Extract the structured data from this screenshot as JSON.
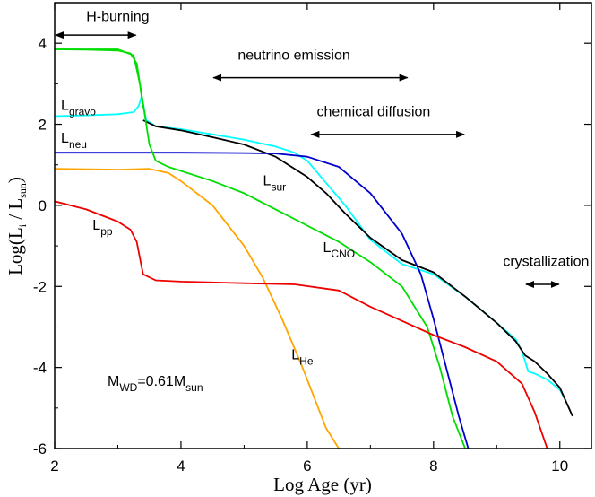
{
  "chart_data": {
    "type": "line",
    "title": "",
    "xlabel": "Log Age (yr)",
    "ylabel_main": "Log(L",
    "ylabel_sub1": "i",
    "ylabel_mid": " / L",
    "ylabel_sub2": "sun",
    "ylabel_end": ")",
    "xlim": [
      2,
      10.5
    ],
    "ylim": [
      -6,
      5
    ],
    "xticks": [
      2,
      4,
      6,
      8,
      10
    ],
    "yticks": [
      -6,
      -4,
      -2,
      0,
      2,
      4
    ],
    "xtick_labels": [
      "2",
      "4",
      "6",
      "8",
      "10"
    ],
    "ytick_labels": [
      "-6",
      "-4",
      "-2",
      "0",
      "2",
      "4"
    ],
    "note": {
      "base": "M",
      "sub1": "WD",
      "mid": "=0.61M",
      "sub2": "sun"
    },
    "annotations": [
      {
        "label": "H-burning",
        "x1": 2.0,
        "x2": 3.3,
        "y": 4.2,
        "tx": 2.5,
        "ty": 4.55
      },
      {
        "label": "neutrino emission",
        "x1": 4.5,
        "x2": 7.6,
        "y": 3.15,
        "tx": 4.9,
        "ty": 3.6
      },
      {
        "label": "chemical diffusion",
        "x1": 6.05,
        "x2": 8.5,
        "y": 1.75,
        "tx": 6.15,
        "ty": 2.2
      },
      {
        "label": "crystallization",
        "x1": 9.45,
        "x2": 10.0,
        "y": -1.95,
        "tx": 9.1,
        "ty": -1.5
      }
    ],
    "series": [
      {
        "name": "L_gravo",
        "label_base": "L",
        "label_sub": "gravo",
        "label_x": 2.1,
        "label_y": 2.35,
        "color": "#00ffff",
        "x": [
          2.0,
          2.5,
          3.0,
          3.25,
          3.33,
          3.38,
          3.45,
          3.6,
          4.0,
          4.5,
          5.0,
          5.5,
          5.8,
          6.0,
          6.3,
          6.6,
          7.0,
          7.5,
          8.0,
          8.5,
          9.0,
          9.3,
          9.4,
          9.5,
          9.6,
          9.8,
          10.0,
          10.05
        ],
        "y": [
          2.2,
          2.22,
          2.25,
          2.3,
          2.45,
          2.7,
          2.1,
          1.95,
          1.88,
          1.75,
          1.62,
          1.45,
          1.3,
          1.1,
          0.55,
          0.0,
          -0.85,
          -1.45,
          -1.7,
          -2.25,
          -2.9,
          -3.3,
          -3.6,
          -4.1,
          -4.15,
          -4.3,
          -4.55,
          -4.7
        ]
      },
      {
        "name": "L_sur",
        "label_base": "L",
        "label_sub": "sur",
        "label_x": 5.3,
        "label_y": 0.5,
        "color": "#000000",
        "x": [
          3.4,
          3.6,
          4.0,
          4.5,
          5.0,
          5.5,
          5.8,
          6.0,
          6.3,
          6.6,
          7.0,
          7.5,
          8.0,
          8.5,
          9.0,
          9.3,
          9.45,
          9.6,
          9.8,
          10.0,
          10.2
        ],
        "y": [
          2.1,
          1.95,
          1.85,
          1.68,
          1.5,
          1.2,
          0.9,
          0.7,
          0.3,
          -0.2,
          -0.8,
          -1.35,
          -1.65,
          -2.25,
          -2.9,
          -3.35,
          -3.7,
          -3.85,
          -4.15,
          -4.5,
          -5.2
        ]
      },
      {
        "name": "L_neu",
        "label_base": "L",
        "label_sub": "neu",
        "label_x": 2.1,
        "label_y": 1.55,
        "color": "#0000cd",
        "x": [
          2.0,
          3.0,
          4.0,
          5.0,
          5.5,
          6.0,
          6.5,
          7.0,
          7.5,
          7.8,
          8.0,
          8.2,
          8.4,
          8.55
        ],
        "y": [
          1.3,
          1.3,
          1.3,
          1.29,
          1.28,
          1.2,
          0.95,
          0.3,
          -0.7,
          -1.7,
          -2.8,
          -4.0,
          -5.2,
          -6.0
        ]
      },
      {
        "name": "L_CNO",
        "label_base": "L",
        "label_sub": "CNO",
        "label_x": 6.25,
        "label_y": -1.15,
        "color": "#00dd00",
        "x": [
          2.0,
          2.5,
          3.0,
          3.2,
          3.3,
          3.4,
          3.5,
          3.6,
          3.8,
          4.0,
          4.5,
          5.0,
          5.5,
          6.0,
          6.5,
          7.0,
          7.5,
          7.9,
          8.1,
          8.3,
          8.5
        ],
        "y": [
          3.85,
          3.84,
          3.82,
          3.75,
          3.5,
          2.5,
          1.5,
          1.1,
          0.95,
          0.85,
          0.6,
          0.3,
          -0.1,
          -0.5,
          -0.9,
          -1.4,
          -2.0,
          -3.0,
          -4.0,
          -5.2,
          -6.0
        ]
      },
      {
        "name": "L_H-burning",
        "color": "#00dd00",
        "x": [
          2.0,
          3.0,
          3.25,
          3.35,
          3.4
        ],
        "y": [
          3.85,
          3.85,
          3.7,
          3.0,
          2.4
        ]
      },
      {
        "name": "L_He",
        "label_base": "L",
        "label_sub": "He",
        "label_x": 5.75,
        "label_y": -3.8,
        "color": "#ffa500",
        "x": [
          2.0,
          3.0,
          3.5,
          3.8,
          4.0,
          4.5,
          5.0,
          5.3,
          5.6,
          5.9,
          6.1,
          6.3,
          6.5
        ],
        "y": [
          0.9,
          0.88,
          0.9,
          0.8,
          0.6,
          0.0,
          -1.0,
          -1.8,
          -2.8,
          -3.9,
          -4.7,
          -5.5,
          -6.0
        ]
      },
      {
        "name": "L_pp",
        "label_base": "L",
        "label_sub": "pp",
        "label_x": 2.6,
        "label_y": -0.6,
        "color": "#ee0000",
        "x": [
          2.0,
          2.5,
          3.0,
          3.2,
          3.3,
          3.35,
          3.4,
          3.6,
          4.0,
          5.0,
          5.8,
          6.5,
          7.0,
          7.5,
          8.0,
          8.5,
          9.0,
          9.4,
          9.6,
          9.8
        ],
        "y": [
          0.1,
          -0.1,
          -0.4,
          -0.6,
          -0.9,
          -1.3,
          -1.7,
          -1.85,
          -1.88,
          -1.92,
          -1.95,
          -2.1,
          -2.5,
          -2.85,
          -3.2,
          -3.5,
          -3.85,
          -4.4,
          -5.1,
          -6.0
        ]
      }
    ]
  }
}
